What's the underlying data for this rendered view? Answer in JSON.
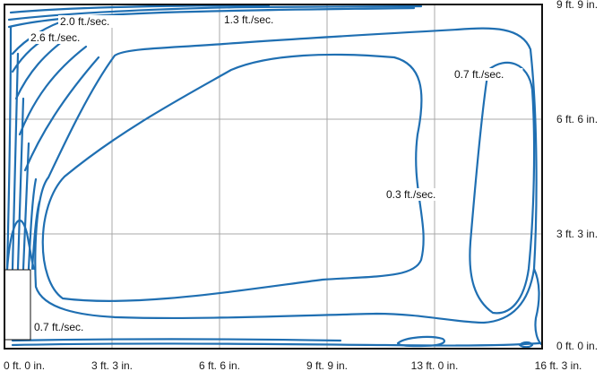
{
  "chart_data": {
    "type": "contour",
    "x_ticks": [
      "0 ft. 0 in.",
      "3 ft. 3 in.",
      "6 ft. 6 in.",
      "9 ft. 9 in.",
      "13 ft. 0 in.",
      "16 ft. 3 in."
    ],
    "y_ticks": [
      "0 ft. 0 in.",
      "3 ft. 3 in.",
      "6 ft. 6 in.",
      "9 ft. 9 in."
    ],
    "xlim_ft": [
      0,
      16.25
    ],
    "ylim_ft": [
      0,
      9.75
    ],
    "grid": true,
    "contour_labels": [
      "2.0 ft./sec.",
      "2.6 ft./sec.",
      "1.3 ft./sec.",
      "0.7 ft./sec.",
      "0.3 ft./sec.",
      "0.7 ft./sec."
    ],
    "line_color": "#1f6fb2",
    "grid_color": "#a8a8a8"
  }
}
